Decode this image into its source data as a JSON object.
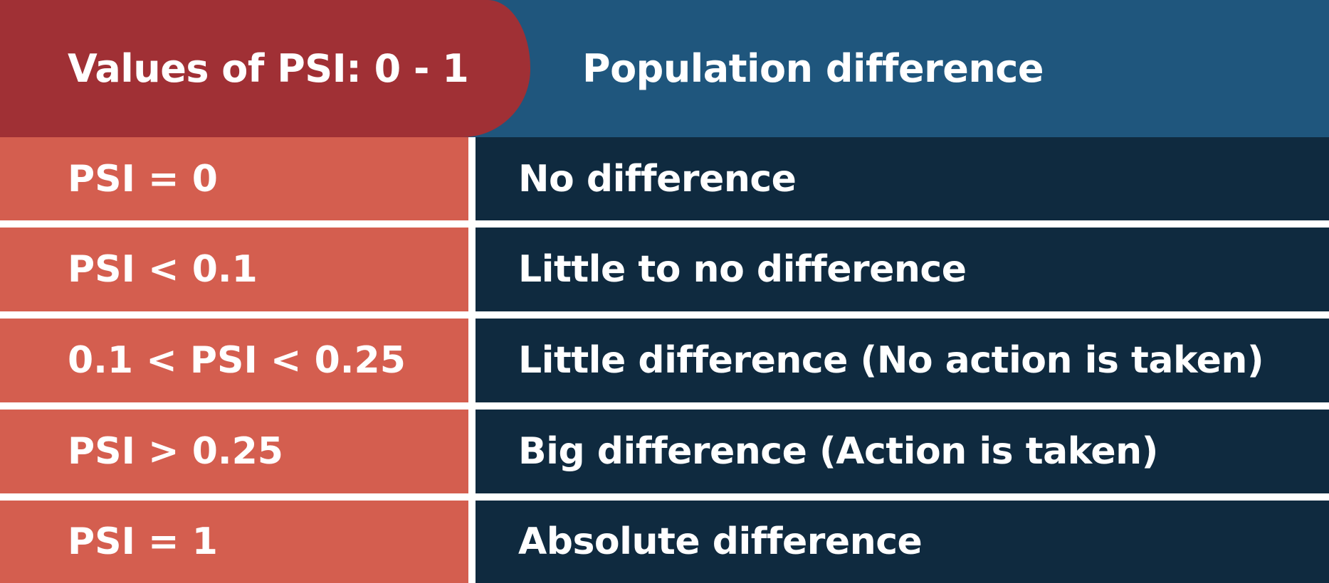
{
  "header": {
    "left_title": "Values of PSI: 0 - 1",
    "right_title": "Population difference"
  },
  "rows": [
    {
      "value": "PSI = 0",
      "meaning": "No difference"
    },
    {
      "value": "PSI < 0.1",
      "meaning": "Little to no difference"
    },
    {
      "value": "0.1 < PSI < 0.25",
      "meaning": "Little difference (No action is taken)"
    },
    {
      "value": "PSI > 0.25",
      "meaning": "Big difference (Action is taken)"
    },
    {
      "value": "PSI = 1",
      "meaning": "Absolute difference"
    }
  ],
  "colors": {
    "header_left": "#a03035",
    "header_right": "#1f567d",
    "cell_left": "#d45e4f",
    "cell_right": "#0f2a3f",
    "divider": "#ffffff"
  }
}
